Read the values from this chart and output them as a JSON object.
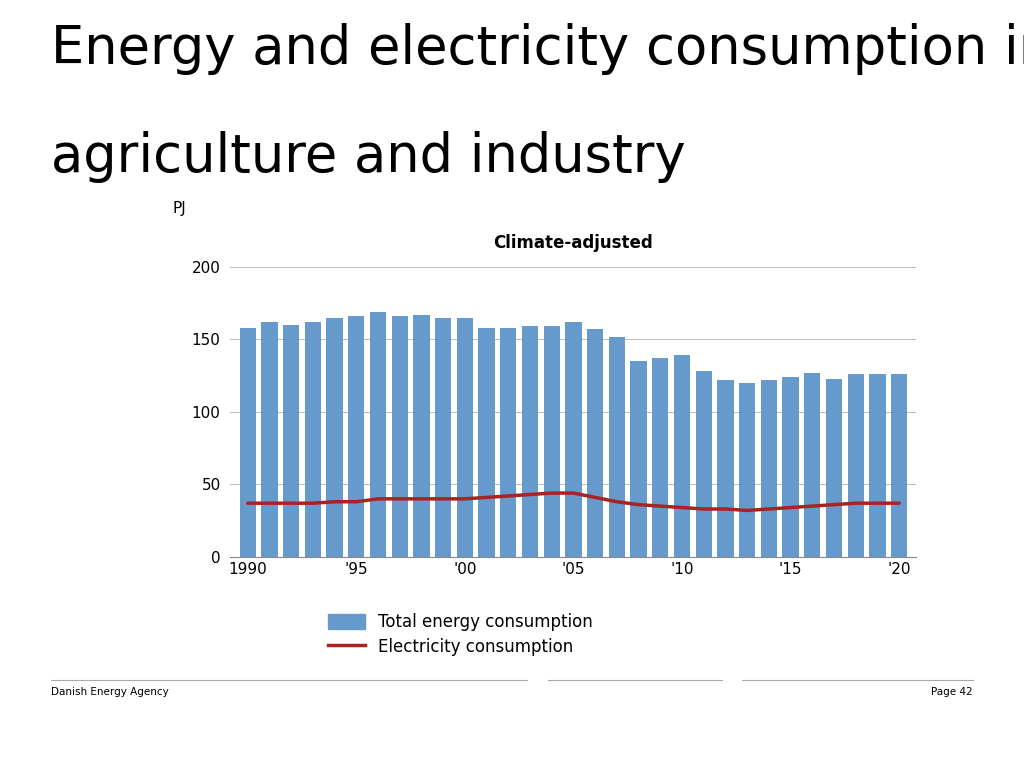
{
  "title_line1": "Energy and electricity consumption in",
  "title_line2": "agriculture and industry",
  "subtitle": "Climate-adjusted",
  "ylabel": "PJ",
  "footer_left": "Danish Energy Agency",
  "footer_right": "Page 42",
  "years": [
    1990,
    1991,
    1992,
    1993,
    1994,
    1995,
    1996,
    1997,
    1998,
    1999,
    2000,
    2001,
    2002,
    2003,
    2004,
    2005,
    2006,
    2007,
    2008,
    2009,
    2010,
    2011,
    2012,
    2013,
    2014,
    2015,
    2016,
    2017,
    2018,
    2019,
    2020
  ],
  "total_energy": [
    158,
    162,
    160,
    162,
    165,
    166,
    169,
    166,
    167,
    165,
    165,
    158,
    158,
    159,
    159,
    162,
    157,
    152,
    135,
    137,
    139,
    128,
    122,
    120,
    122,
    124,
    127,
    123,
    126,
    126,
    126
  ],
  "electricity": [
    37,
    37,
    37,
    37,
    38,
    38,
    40,
    40,
    40,
    40,
    40,
    41,
    42,
    43,
    44,
    44,
    41,
    38,
    36,
    35,
    34,
    33,
    33,
    32,
    33,
    34,
    35,
    36,
    37,
    37,
    37
  ],
  "bar_color": "#6699cc",
  "line_color": "#aa2222",
  "ylim": [
    0,
    220
  ],
  "yticks": [
    0,
    50,
    100,
    150,
    200
  ],
  "xtick_labels": [
    "1990",
    "'95",
    "'00",
    "'05",
    "'10",
    "'15",
    "'20"
  ],
  "xtick_positions": [
    1990,
    1995,
    2000,
    2005,
    2010,
    2015,
    2020
  ],
  "legend_bar_label": "Total energy consumption",
  "legend_line_label": "Electricity consumption",
  "background_color": "#ffffff",
  "title_fontsize": 38,
  "subtitle_fontsize": 12,
  "axis_fontsize": 11,
  "footer_fontsize": 7.5
}
